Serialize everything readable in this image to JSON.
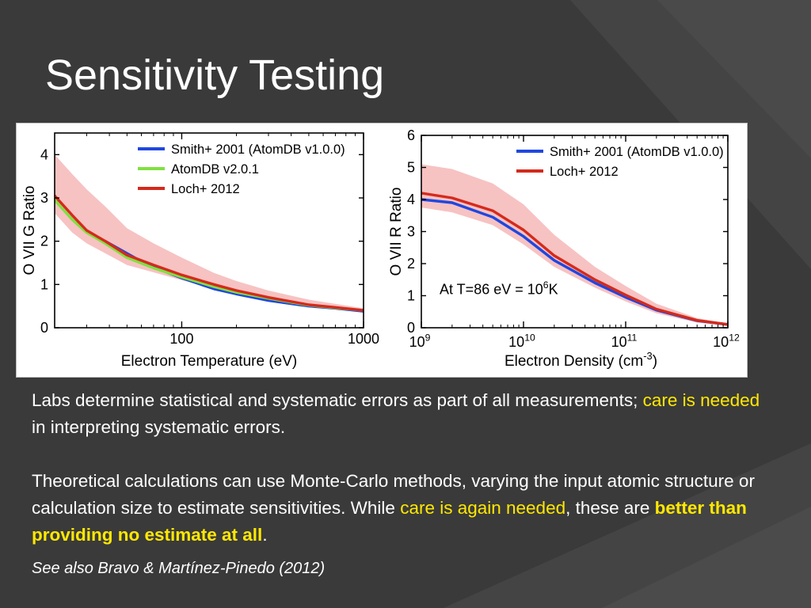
{
  "slide": {
    "title": "Sensitivity Testing",
    "paragraph1": {
      "text_a": "Labs determine statistical and systematic errors as part of all measurements; ",
      "highlight": "care is needed",
      "text_b": " in interpreting systematic errors."
    },
    "paragraph2": {
      "text_a": "Theoretical calculations can use Monte-Carlo methods, varying the input atomic structure or calculation size to estimate sensitivities.  While ",
      "highlight": "care is again needed",
      "text_b": ", these are ",
      "highlight_bold": "better than providing no estimate at all",
      "text_c": "."
    },
    "reference": "See also Bravo & Martínez-Pinedo (2012)"
  },
  "colors": {
    "background": "#3a3a3a",
    "accent": "#ffe800",
    "smith": "#1f47e0",
    "atomdb": "#80e040",
    "loch": "#d42a1c",
    "band": "#f6b7b7"
  },
  "chart_data": [
    {
      "type": "line",
      "xlabel": "Electron Temperature (eV)",
      "ylabel": "O VII G Ratio",
      "xscale": "log",
      "xlim": [
        20,
        1000
      ],
      "ylim": [
        0,
        4.5
      ],
      "xticks": [
        100,
        1000
      ],
      "xtick_labels": [
        "100",
        "1000"
      ],
      "yticks": [
        0,
        1,
        2,
        3,
        4
      ],
      "ytick_labels": [
        "0",
        "1",
        "2",
        "3",
        "4"
      ],
      "legend_position": "top-right",
      "series": [
        {
          "name": "Smith+ 2001 (AtomDB v1.0.0)",
          "color": "#1f47e0",
          "x": [
            38,
            55,
            70,
            100,
            150,
            200,
            300,
            500,
            700,
            1000
          ],
          "y": [
            2.0,
            1.62,
            1.4,
            1.15,
            0.9,
            0.78,
            0.63,
            0.5,
            0.45,
            0.38
          ]
        },
        {
          "name": "AtomDB v2.0.1",
          "color": "#80e040",
          "x": [
            20,
            25,
            30,
            38,
            50,
            70,
            100,
            150,
            200,
            300,
            500,
            700,
            1000
          ],
          "y": [
            2.95,
            2.5,
            2.2,
            1.95,
            1.62,
            1.38,
            1.17,
            0.95,
            0.82,
            0.68,
            0.52,
            0.46,
            0.4
          ]
        },
        {
          "name": "Loch+ 2012",
          "color": "#d42a1c",
          "x": [
            20,
            25,
            30,
            38,
            50,
            70,
            100,
            150,
            200,
            300,
            500,
            700,
            1000
          ],
          "y": [
            3.05,
            2.6,
            2.25,
            2.0,
            1.68,
            1.45,
            1.22,
            1.0,
            0.86,
            0.7,
            0.53,
            0.47,
            0.4
          ]
        }
      ],
      "band": {
        "x": [
          20,
          25,
          30,
          38,
          50,
          70,
          100,
          150,
          200,
          300,
          500,
          700,
          1000
        ],
        "low": [
          2.65,
          2.2,
          1.95,
          1.72,
          1.45,
          1.28,
          1.1,
          0.92,
          0.8,
          0.66,
          0.5,
          0.44,
          0.37
        ],
        "high": [
          4.0,
          3.55,
          3.2,
          2.8,
          2.3,
          1.95,
          1.62,
          1.27,
          1.08,
          0.86,
          0.65,
          0.55,
          0.45
        ]
      }
    },
    {
      "type": "line",
      "xlabel": "Electron Density (cm",
      "xlabel_sup": "-3",
      "xlabel_end": ")",
      "ylabel": "O VII R Ratio",
      "xscale": "log",
      "xlim": [
        1000000000.0,
        1000000000000.0
      ],
      "ylim": [
        0,
        6
      ],
      "xticks": [
        1000000000.0,
        10000000000.0,
        100000000000.0,
        1000000000000.0
      ],
      "xtick_labels": [
        {
          "base": "10",
          "exp": "9"
        },
        {
          "base": "10",
          "exp": "10"
        },
        {
          "base": "10",
          "exp": "11"
        },
        {
          "base": "10",
          "exp": "12"
        }
      ],
      "yticks": [
        0,
        1,
        2,
        3,
        4,
        5,
        6
      ],
      "ytick_labels": [
        "0",
        "1",
        "2",
        "3",
        "4",
        "5",
        "6"
      ],
      "legend_position": "top-right",
      "annotation": {
        "text": "At T=86 eV = 10",
        "sup": "6",
        "end": "K"
      },
      "series": [
        {
          "name": "Smith+ 2001 (AtomDB v1.0.0)",
          "color": "#1f47e0",
          "x": [
            1000000000.0,
            2000000000.0,
            5000000000.0,
            10000000000.0,
            20000000000.0,
            50000000000.0,
            100000000000.0,
            200000000000.0,
            500000000000.0,
            1000000000000.0
          ],
          "y": [
            4.0,
            3.9,
            3.45,
            2.85,
            2.1,
            1.4,
            0.95,
            0.55,
            0.22,
            0.1
          ]
        },
        {
          "name": "Loch+ 2012",
          "color": "#d42a1c",
          "x": [
            1000000000.0,
            2000000000.0,
            5000000000.0,
            10000000000.0,
            20000000000.0,
            50000000000.0,
            100000000000.0,
            200000000000.0,
            500000000000.0,
            1000000000000.0
          ],
          "y": [
            4.2,
            4.05,
            3.65,
            3.05,
            2.25,
            1.5,
            1.02,
            0.58,
            0.23,
            0.1
          ]
        }
      ],
      "band": {
        "x": [
          1000000000.0,
          2000000000.0,
          5000000000.0,
          10000000000.0,
          20000000000.0,
          50000000000.0,
          100000000000.0,
          200000000000.0,
          500000000000.0,
          1000000000000.0
        ],
        "low": [
          3.75,
          3.6,
          3.2,
          2.6,
          1.9,
          1.25,
          0.82,
          0.45,
          0.16,
          0.07
        ],
        "high": [
          5.1,
          4.95,
          4.5,
          3.85,
          2.9,
          1.9,
          1.3,
          0.75,
          0.3,
          0.13
        ]
      }
    }
  ]
}
